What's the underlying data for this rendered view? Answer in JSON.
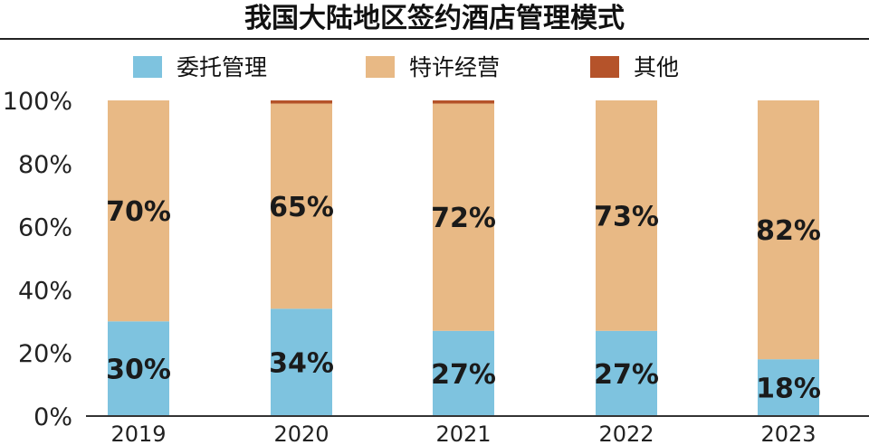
{
  "chart_data": {
    "type": "bar",
    "stacked": true,
    "title": "我国大陆地区签约酒店管理模式",
    "categories": [
      "2019",
      "2020",
      "2021",
      "2022",
      "2023"
    ],
    "series": [
      {
        "name": "委托管理",
        "color": "#7ec3df",
        "values": [
          30,
          34,
          27,
          27,
          18
        ],
        "labels": [
          "30%",
          "34%",
          "27%",
          "27%",
          "18%"
        ]
      },
      {
        "name": "特许经营",
        "color": "#e8b985",
        "values": [
          70,
          65,
          72,
          73,
          82
        ],
        "labels": [
          "70%",
          "65%",
          "72%",
          "73%",
          "82%"
        ]
      },
      {
        "name": "其他",
        "color": "#b5532a",
        "values": [
          0,
          1,
          1,
          0,
          0
        ],
        "labels": []
      }
    ],
    "yticks": [
      "0%",
      "20%",
      "40%",
      "60%",
      "80%",
      "100%"
    ],
    "ylim": [
      0,
      100
    ],
    "legend_position": "top",
    "grid": false
  }
}
